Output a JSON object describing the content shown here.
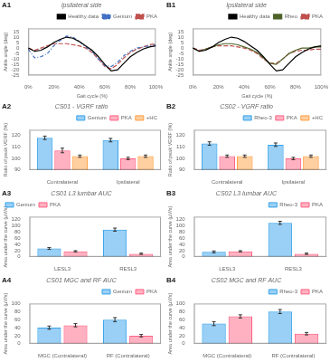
{
  "chart_data": [
    {
      "type": "line",
      "title": "Ipsilateral side",
      "annotations": [
        "A1"
      ],
      "xlabel": "Gait cycle (%)",
      "ylabel": "Ankle angle (deg)",
      "x": [
        0,
        5,
        10,
        15,
        20,
        25,
        30,
        35,
        40,
        45,
        50,
        55,
        60,
        65,
        70,
        75,
        80,
        85,
        90,
        95,
        100
      ],
      "xlim": [
        0,
        100
      ],
      "xticks": [
        {
          "value": 0,
          "label": "0%"
        },
        {
          "value": 20,
          "label": "20%"
        },
        {
          "value": 40,
          "label": "40%"
        },
        {
          "value": 60,
          "label": "60%"
        },
        {
          "value": 80,
          "label": "80%"
        },
        {
          "value": 100,
          "label": "100%"
        }
      ],
      "ylim": [
        -25,
        18
      ],
      "yticks": [
        -25,
        -20,
        -15,
        -10,
        -5,
        0,
        5,
        10,
        15
      ],
      "grid": false,
      "legend": "upper right",
      "series": [
        {
          "name": "Healthy data",
          "color": "#000000",
          "line_style": "solid",
          "values": [
            0,
            -3,
            -2,
            1,
            5,
            8,
            10,
            9,
            6,
            2,
            -2,
            -8,
            -15,
            -21,
            -20,
            -14,
            -8,
            -4,
            -1,
            1,
            2
          ]
        },
        {
          "name": "Genium",
          "color": "#4472C4",
          "line_style": "dashdot",
          "values": [
            -1,
            -9,
            -8,
            -5,
            2,
            7,
            11,
            10,
            6,
            1,
            -3,
            -10,
            -16,
            -17,
            -13,
            -7,
            -3,
            0,
            1,
            2,
            3
          ]
        },
        {
          "name": "PKA",
          "color": "#C0504D",
          "line_style": "dashed",
          "values": [
            0,
            -2,
            0,
            2,
            4,
            4,
            4,
            3,
            2,
            0,
            -4,
            -10,
            -17,
            -19,
            -15,
            -9,
            -4,
            -1,
            1,
            3,
            4
          ]
        }
      ]
    },
    {
      "type": "line",
      "title": "Ipsilateral side",
      "annotations": [
        "B1"
      ],
      "xlabel": "Gait cycle (%)",
      "ylabel": "Ankle angle (deg)",
      "x": [
        0,
        5,
        10,
        15,
        20,
        25,
        30,
        35,
        40,
        45,
        50,
        55,
        60,
        65,
        70,
        75,
        80,
        85,
        90,
        95,
        100
      ],
      "xlim": [
        0,
        100
      ],
      "xticks": [
        {
          "value": 0,
          "label": "0%"
        },
        {
          "value": 20,
          "label": "20%"
        },
        {
          "value": 40,
          "label": "40%"
        },
        {
          "value": 60,
          "label": "60%"
        },
        {
          "value": 80,
          "label": "80%"
        },
        {
          "value": 100,
          "label": "100%"
        }
      ],
      "ylim": [
        -25,
        18
      ],
      "yticks": [
        -25,
        -20,
        -15,
        -10,
        -5,
        0,
        5,
        10,
        15
      ],
      "grid": false,
      "legend": "upper right",
      "series": [
        {
          "name": "Healthy data",
          "color": "#000000",
          "line_style": "solid",
          "values": [
            0,
            -3,
            -2,
            1,
            5,
            8,
            10,
            9,
            6,
            2,
            -2,
            -8,
            -15,
            -21,
            -20,
            -14,
            -8,
            -4,
            -1,
            1,
            2
          ]
        },
        {
          "name": "Rheo",
          "color": "#4F6228",
          "line_style": "solid",
          "values": [
            0,
            -3,
            -1,
            1,
            3,
            4,
            4,
            3,
            1,
            -1,
            -4,
            -9,
            -14,
            -15,
            -10,
            -5,
            -2,
            0,
            0,
            1,
            1
          ]
        },
        {
          "name": "PKA",
          "color": "#C0504D",
          "line_style": "dashed",
          "values": [
            0,
            -2,
            -1,
            1,
            2,
            2,
            2,
            1,
            0,
            -2,
            -5,
            -10,
            -14,
            -14,
            -10,
            -5,
            -3,
            -2,
            -2,
            -1,
            -1
          ]
        }
      ]
    },
    {
      "type": "bar",
      "title": "CS01 - VGRF ratio",
      "annotations": [
        "A2"
      ],
      "ylabel": "Ratio of peak VGRF (%)",
      "categories": [
        "Contralateral",
        "Ipsilateral"
      ],
      "ylim": [
        90,
        125
      ],
      "yticks": [
        90,
        100,
        110,
        120
      ],
      "grid": false,
      "legend": "upper right",
      "series": [
        {
          "name": "Genium",
          "values": [
            118,
            116
          ],
          "errors": [
            1.5,
            1.5
          ]
        },
        {
          "name": "PKA",
          "values": [
            107,
            100
          ],
          "errors": [
            2,
            1
          ]
        },
        {
          "name": "+HC",
          "values": [
            102,
            102
          ],
          "errors": [
            1,
            1
          ]
        }
      ]
    },
    {
      "type": "bar",
      "title": "CS02 - VGRF ratio",
      "annotations": [
        "B2"
      ],
      "ylabel": "Ratio of peak VGRF (%)",
      "categories": [
        "Contralateral",
        "Ipsilateral"
      ],
      "ylim": [
        90,
        125
      ],
      "yticks": [
        90,
        100,
        110,
        120
      ],
      "grid": false,
      "legend": "upper right",
      "series": [
        {
          "name": "Rheo-3",
          "values": [
            113,
            112
          ],
          "errors": [
            1.5,
            1.5
          ]
        },
        {
          "name": "PKA",
          "values": [
            102,
            100
          ],
          "errors": [
            1,
            1
          ]
        },
        {
          "name": "+HC",
          "values": [
            102,
            102
          ],
          "errors": [
            1,
            1
          ]
        }
      ]
    },
    {
      "type": "bar",
      "title": "CS01 L3 lumbar AUC",
      "annotations": [
        "A3"
      ],
      "ylabel": "Area under the curve (µV/s)",
      "categories": [
        "LESL3",
        "RESL3"
      ],
      "ylim": [
        0,
        130
      ],
      "yticks": [
        0,
        20,
        40,
        60,
        80,
        100,
        120
      ],
      "grid": false,
      "legend": "upper left",
      "series": [
        {
          "name": "Genium",
          "values": [
            27,
            88
          ],
          "errors": [
            3,
            5
          ]
        },
        {
          "name": "PKA",
          "values": [
            18,
            10
          ],
          "errors": [
            2,
            2
          ]
        }
      ]
    },
    {
      "type": "bar",
      "title": "CS02 L3 lumbar AUC",
      "annotations": [
        "B3"
      ],
      "ylabel": "Area under the curve (µV/s)",
      "categories": [
        "LESL3",
        "RESL3"
      ],
      "ylim": [
        0,
        130
      ],
      "yticks": [
        0,
        20,
        40,
        60,
        80,
        100,
        120
      ],
      "grid": false,
      "legend": "upper right",
      "series": [
        {
          "name": "Rheo-3",
          "values": [
            16,
            110
          ],
          "errors": [
            3,
            5
          ]
        },
        {
          "name": "PKA",
          "values": [
            18,
            10
          ],
          "errors": [
            2,
            2
          ]
        }
      ]
    },
    {
      "type": "bar",
      "title": "CS01 MGC and RF AUC",
      "annotations": [
        "A4"
      ],
      "ylabel": "Area under the curve (µV/s)",
      "categories": [
        "MGC (Contralateral)",
        "RF (Contralateral)"
      ],
      "ylim": [
        0,
        100
      ],
      "yticks": [
        0,
        20,
        40,
        60,
        80,
        100
      ],
      "grid": false,
      "legend": "upper right",
      "series": [
        {
          "name": "Genium",
          "values": [
            40,
            60
          ],
          "errors": [
            4,
            5
          ]
        },
        {
          "name": "PKA",
          "values": [
            46,
            20
          ],
          "errors": [
            4,
            3
          ]
        }
      ]
    },
    {
      "type": "bar",
      "title": "CS02 MGC and RF AUC",
      "annotations": [
        "B4"
      ],
      "ylabel": "Area under the curve (µV/s)",
      "categories": [
        "MGC (Contralateral)",
        "RF (Contralateral)"
      ],
      "ylim": [
        0,
        100
      ],
      "yticks": [
        0,
        20,
        40,
        60,
        80,
        100
      ],
      "grid": false,
      "legend": "upper right",
      "series": [
        {
          "name": "Rheo-3",
          "values": [
            50,
            80
          ],
          "errors": [
            5,
            5
          ]
        },
        {
          "name": "PKA",
          "values": [
            68,
            25
          ],
          "errors": [
            4,
            3
          ]
        }
      ]
    }
  ]
}
